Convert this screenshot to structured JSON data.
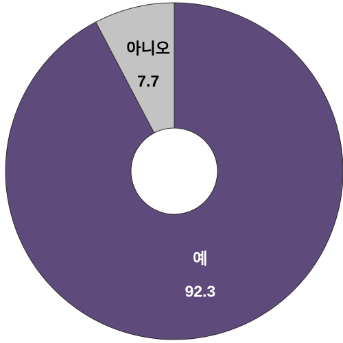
{
  "chart_data": {
    "type": "donut",
    "categories": [
      "예",
      "아니오"
    ],
    "values": [
      92.3,
      7.7
    ],
    "colors": [
      "#5f4b7b",
      "#c3c3c3"
    ],
    "label_colors": [
      "#ffffff",
      "#000000"
    ]
  }
}
